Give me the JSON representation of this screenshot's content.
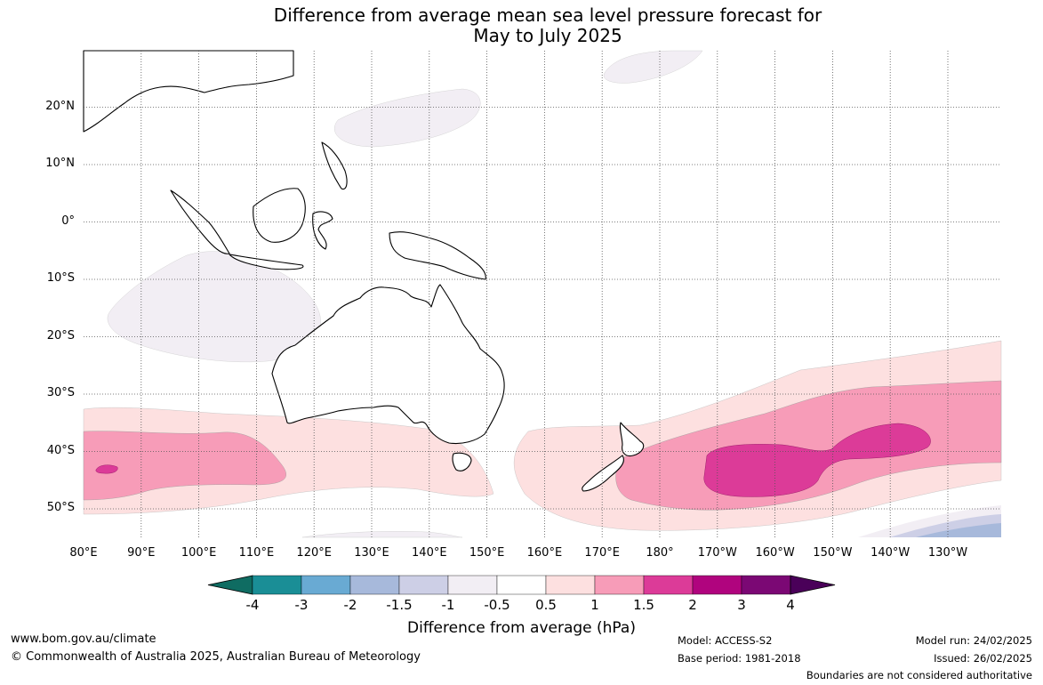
{
  "title": {
    "line1": "Difference from average mean sea level pressure forecast for",
    "line2": "May to July 2025"
  },
  "map": {
    "lon_range": [
      80,
      240
    ],
    "lat_range": [
      -55,
      30
    ],
    "lat_labels": [
      "20°N",
      "10°N",
      "0°",
      "10°S",
      "20°S",
      "30°S",
      "40°S",
      "50°S"
    ],
    "lon_labels": [
      "80°E",
      "90°E",
      "100°E",
      "110°E",
      "120°E",
      "130°E",
      "140°E",
      "150°E",
      "160°E",
      "170°E",
      "180°",
      "170°W",
      "160°W",
      "150°W",
      "140°W",
      "130°W"
    ]
  },
  "colorbar": {
    "ticks": [
      "-4",
      "-3",
      "-2",
      "-1.5",
      "-1",
      "-0.5",
      "0.5",
      "1",
      "1.5",
      "2",
      "3",
      "4"
    ],
    "colors": [
      "#0f6c62",
      "#1a8e96",
      "#69aad3",
      "#a7b9db",
      "#cdcfe6",
      "#f2eef4",
      "#ffffff",
      "#fde0e0",
      "#f79cb8",
      "#dc3b98",
      "#b0047e",
      "#7b0874",
      "#4a0059"
    ],
    "label": "Difference from average (hPa)"
  },
  "footer": {
    "website": "www.bom.gov.au/climate",
    "copyright": "© Commonwealth of Australia 2025, Australian Bureau of Meteorology",
    "model": "Model: ACCESS-S2",
    "base_period": "Base period: 1981-2018",
    "model_run": "Model run: 24/02/2025",
    "issued": "Issued: 26/02/2025",
    "disclaimer": "Boundaries are not considered authoritative"
  }
}
